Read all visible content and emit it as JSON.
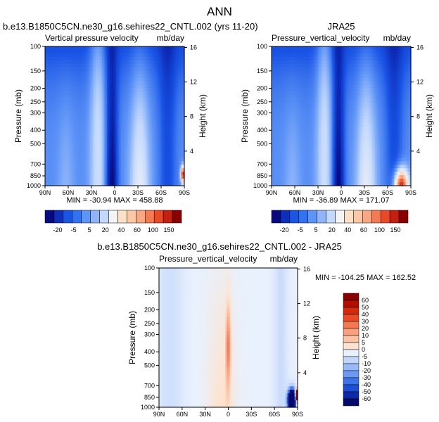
{
  "figure_title": "ANN",
  "chart_data": [
    {
      "type": "heatmap",
      "id": "model",
      "title": "b.e13.B1850C5CN.ne30_g16.sehires22_CNTL.002 (yrs 11-20)",
      "subtitle_left": "Vertical pressure velocity",
      "subtitle_right": "mb/day",
      "xlabel": "",
      "ylabel": "Pressure (mb)",
      "ylabel_right": "Height (km)",
      "x_ticks": [
        "90N",
        "60N",
        "30N",
        "0",
        "30S",
        "60S",
        "90S"
      ],
      "x_tick_values": [
        90,
        60,
        30,
        0,
        -30,
        -60,
        -90
      ],
      "y_ticks": [
        "100",
        "150",
        "200",
        "250",
        "300",
        "400",
        "500",
        "700",
        "850",
        "1000"
      ],
      "y_tick_values": [
        100,
        150,
        200,
        250,
        300,
        400,
        500,
        700,
        850,
        1000
      ],
      "y_right_ticks": [
        "16",
        "12",
        "8",
        "4"
      ],
      "y_right_tick_values": [
        16,
        12,
        8,
        4
      ],
      "xlim": [
        90,
        -90
      ],
      "ylim": [
        1000,
        100
      ],
      "y_scale": "log",
      "stats": "MIN = -30.94  MAX = 458.88",
      "colorbar": {
        "labels": [
          "-20",
          "-5",
          "5",
          "20",
          "40",
          "60",
          "100",
          "150"
        ],
        "levels": [
          -30,
          -20,
          -10,
          -5,
          0,
          5,
          10,
          20,
          30,
          40,
          50,
          60,
          100,
          150
        ],
        "colors": [
          "#080a80",
          "#0d2fbc",
          "#1a55e6",
          "#2f73f2",
          "#5e94f7",
          "#8fb4f9",
          "#c2d8fd",
          "#f4f4f4",
          "#fde0c8",
          "#fcc7a4",
          "#f9a683",
          "#f57a52",
          "#e84a27",
          "#c61f0e",
          "#8a0000"
        ]
      }
    },
    {
      "type": "heatmap",
      "id": "obs",
      "title": "JRA25",
      "subtitle_left": "Pressure_vertical_velocity",
      "subtitle_right": "mb/day",
      "xlabel": "",
      "ylabel": "Pressure (mb)",
      "ylabel_right": "Height (km)",
      "x_ticks": [
        "90N",
        "60N",
        "30N",
        "0",
        "30S",
        "60S",
        "90S"
      ],
      "x_tick_values": [
        90,
        60,
        30,
        0,
        -30,
        -60,
        -90
      ],
      "y_ticks": [
        "100",
        "150",
        "200",
        "250",
        "300",
        "400",
        "500",
        "700",
        "850",
        "1000"
      ],
      "y_tick_values": [
        100,
        150,
        200,
        250,
        300,
        400,
        500,
        700,
        850,
        1000
      ],
      "y_right_ticks": [
        "16",
        "12",
        "8",
        "4"
      ],
      "y_right_tick_values": [
        16,
        12,
        8,
        4
      ],
      "xlim": [
        90,
        -90
      ],
      "ylim": [
        1000,
        100
      ],
      "y_scale": "log",
      "stats": "MIN = -36.89  MAX = 171.07",
      "colorbar": {
        "labels": [
          "-20",
          "-5",
          "5",
          "20",
          "40",
          "60",
          "100",
          "150"
        ],
        "levels": [
          -30,
          -20,
          -10,
          -5,
          0,
          5,
          10,
          20,
          30,
          40,
          50,
          60,
          100,
          150
        ],
        "colors": [
          "#080a80",
          "#0d2fbc",
          "#1a55e6",
          "#2f73f2",
          "#5e94f7",
          "#8fb4f9",
          "#c2d8fd",
          "#f4f4f4",
          "#fde0c8",
          "#fcc7a4",
          "#f9a683",
          "#f57a52",
          "#e84a27",
          "#c61f0e",
          "#8a0000"
        ]
      }
    },
    {
      "type": "heatmap",
      "id": "diff",
      "title": "b.e13.B1850C5CN.ne30_g16.sehires22_CNTL.002 - JRA25",
      "subtitle_left": "Pressure_vertical_velocity",
      "subtitle_right": "mb/day",
      "xlabel": "",
      "ylabel": "Pressure (mb)",
      "ylabel_right": "Height (km)",
      "x_ticks": [
        "90N",
        "60N",
        "30N",
        "0",
        "30S",
        "60S",
        "90S"
      ],
      "x_tick_values": [
        90,
        60,
        30,
        0,
        -30,
        -60,
        -90
      ],
      "y_ticks": [
        "100",
        "150",
        "200",
        "250",
        "300",
        "400",
        "500",
        "700",
        "850",
        "1000"
      ],
      "y_tick_values": [
        100,
        150,
        200,
        250,
        300,
        400,
        500,
        700,
        850,
        1000
      ],
      "y_right_ticks": [
        "16",
        "12",
        "8",
        "4"
      ],
      "y_right_tick_values": [
        16,
        12,
        8,
        4
      ],
      "xlim": [
        90,
        -90
      ],
      "ylim": [
        1000,
        100
      ],
      "y_scale": "log",
      "stats": "MIN = -104.25  MAX = 162.52",
      "colorbar": {
        "labels": [
          "60",
          "50",
          "40",
          "30",
          "20",
          "10",
          "5",
          "0",
          "-5",
          "-10",
          "-20",
          "-30",
          "-40",
          "-50",
          "-60"
        ],
        "colors": [
          "#8a0000",
          "#b30d00",
          "#d42a0c",
          "#ea4b25",
          "#f5774f",
          "#f9a07f",
          "#fcc3a3",
          "#fde3cf",
          "#e9f1fd",
          "#c3d7fb",
          "#98b9f8",
          "#6d99f4",
          "#3e74ea",
          "#1c4fd6",
          "#0c2aa8",
          "#050b6e"
        ]
      }
    }
  ]
}
